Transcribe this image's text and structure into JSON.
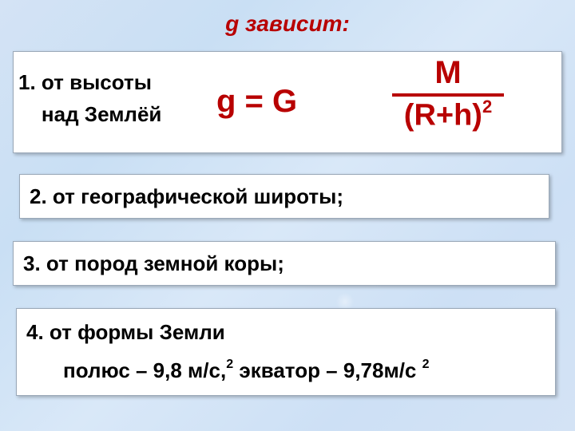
{
  "colors": {
    "title_color": "#b80000",
    "formula_color": "#b80000",
    "text_color": "#000000",
    "box_bg": "#ffffff",
    "box_border": "#9aa8b8",
    "slide_bg_base": "#cde0f5"
  },
  "title": "g зависит:",
  "item1": {
    "line1": "1. от высоты",
    "line2_indent": "над Землёй",
    "formula": {
      "lhs": "g = G",
      "numerator": "M",
      "denominator_base": "(R+h)",
      "denominator_exp": "2"
    }
  },
  "item2": "2. от географической широты;",
  "item3": "3. от пород земной коры;",
  "item4": {
    "line1": "4. от формы Земли",
    "line2_prefix": "полюс – 9,8 м/с,",
    "line2_sup1": "2",
    "line2_mid": " экватор – 9,78м/с ",
    "line2_sup2": "2"
  }
}
